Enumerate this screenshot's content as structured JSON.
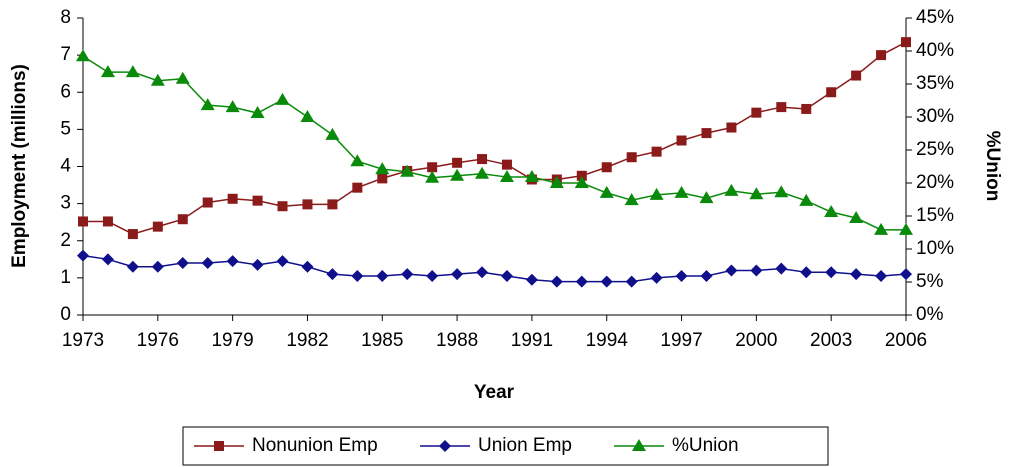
{
  "chart_data": {
    "type": "line",
    "x_label": "Year",
    "y_label": "Employment (millions)",
    "y2_label": "%Union",
    "x": [
      1973,
      1974,
      1975,
      1976,
      1977,
      1978,
      1979,
      1980,
      1981,
      1982,
      1983,
      1984,
      1985,
      1986,
      1987,
      1988,
      1989,
      1990,
      1991,
      1992,
      1993,
      1994,
      1995,
      1996,
      1997,
      1998,
      1999,
      2000,
      2001,
      2002,
      2003,
      2004,
      2005,
      2006
    ],
    "xlim": [
      1973,
      2006
    ],
    "xticks": [
      1973,
      1976,
      1979,
      1982,
      1985,
      1988,
      1991,
      1994,
      1997,
      2000,
      2003,
      2006
    ],
    "ylim": [
      0,
      8
    ],
    "yticks": [
      0,
      1,
      2,
      3,
      4,
      5,
      6,
      7,
      8
    ],
    "y2lim": [
      0,
      45
    ],
    "y2ticks": [
      {
        "value": 0,
        "label": "0%"
      },
      {
        "value": 5,
        "label": "5%"
      },
      {
        "value": 10,
        "label": "10%"
      },
      {
        "value": 15,
        "label": "15%"
      },
      {
        "value": 20,
        "label": "20%"
      },
      {
        "value": 25,
        "label": "25%"
      },
      {
        "value": 30,
        "label": "30%"
      },
      {
        "value": 35,
        "label": "35%"
      },
      {
        "value": 40,
        "label": "40%"
      },
      {
        "value": 45,
        "label": "45%"
      }
    ],
    "grid": false,
    "legend": "bottom",
    "series": [
      {
        "name": "Nonunion Emp",
        "color": "#8b1a1a",
        "marker": "square",
        "values": [
          2.52,
          2.52,
          2.18,
          2.38,
          2.58,
          3.03,
          3.13,
          3.08,
          2.93,
          2.98,
          2.98,
          3.43,
          3.68,
          3.88,
          3.98,
          4.1,
          4.2,
          4.05,
          3.65,
          3.65,
          3.75,
          3.98,
          4.25,
          4.4,
          4.7,
          4.9,
          5.05,
          5.45,
          5.6,
          5.55,
          6.0,
          6.45,
          7.0,
          7.35
        ]
      },
      {
        "name": "Union Emp",
        "color": "#10108c",
        "marker": "diamond",
        "values": [
          1.6,
          1.5,
          1.3,
          1.3,
          1.4,
          1.4,
          1.45,
          1.35,
          1.45,
          1.3,
          1.1,
          1.05,
          1.05,
          1.1,
          1.05,
          1.1,
          1.15,
          1.05,
          0.95,
          0.9,
          0.9,
          0.9,
          0.9,
          1.0,
          1.05,
          1.05,
          1.2,
          1.2,
          1.25,
          1.15,
          1.15,
          1.1,
          1.05,
          1.1
        ]
      },
      {
        "name": "%Union",
        "color": "#0a8a0a",
        "marker": "triangle",
        "axis": "y2",
        "values": [
          39.2,
          36.8,
          36.8,
          35.5,
          35.8,
          31.8,
          31.5,
          30.6,
          32.6,
          30.0,
          27.3,
          23.3,
          22.1,
          21.7,
          20.8,
          21.1,
          21.4,
          20.9,
          20.9,
          20.0,
          20.0,
          18.5,
          17.4,
          18.2,
          18.5,
          17.7,
          18.8,
          18.3,
          18.6,
          17.3,
          15.6,
          14.7,
          12.9,
          12.9
        ]
      }
    ]
  }
}
